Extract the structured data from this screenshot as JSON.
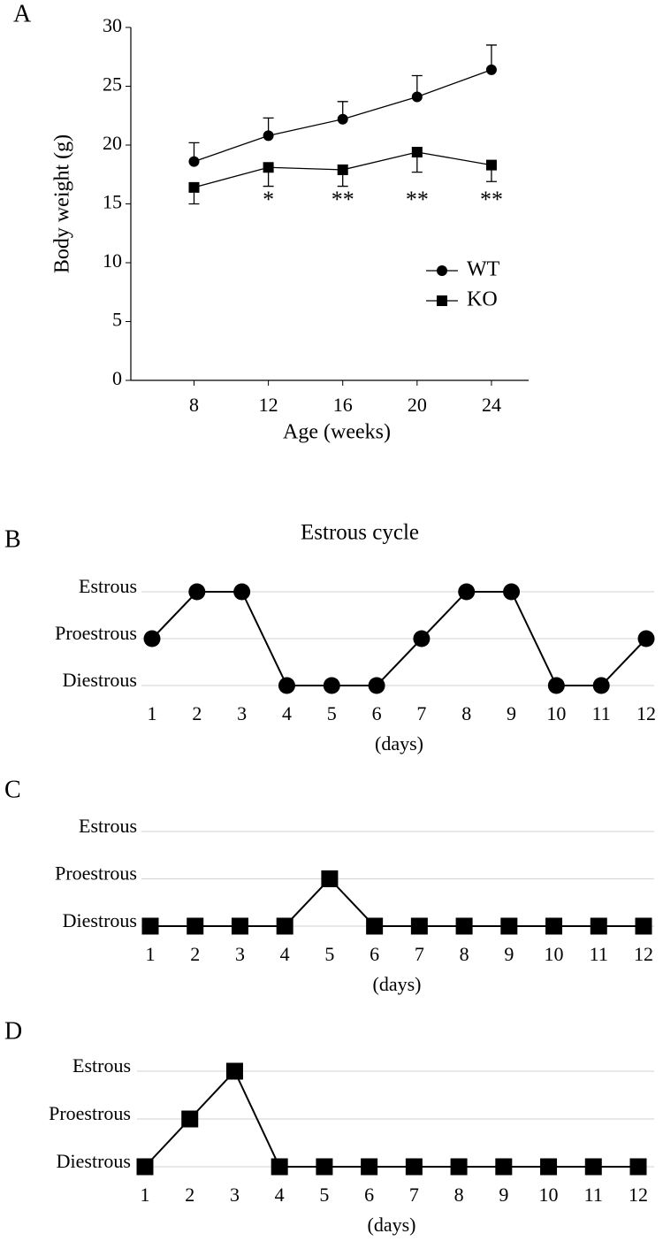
{
  "chart_data": [
    {
      "type": "line",
      "label": "A",
      "xlabel": "Age (weeks)",
      "ylabel": "Body weight (g)",
      "x": [
        8,
        12,
        16,
        20,
        24
      ],
      "xlim": [
        4.6,
        26
      ],
      "xticks": [
        8,
        12,
        16,
        20,
        24
      ],
      "ylim": [
        0,
        30
      ],
      "yticks": [
        0,
        5,
        10,
        15,
        20,
        25,
        30
      ],
      "series": [
        {
          "name": "WT",
          "color": "#000000",
          "marker": "circle",
          "error_direction": "up",
          "values": [
            18.6,
            20.8,
            22.2,
            24.1,
            26.4
          ],
          "errors": [
            1.6,
            1.5,
            1.5,
            1.8,
            2.1
          ]
        },
        {
          "name": "KO",
          "color": "#000000",
          "marker": "square",
          "error_direction": "down",
          "values": [
            16.4,
            18.1,
            17.9,
            19.4,
            18.3
          ],
          "errors": [
            1.4,
            1.6,
            1.4,
            1.7,
            1.4
          ]
        }
      ],
      "annotations": [
        {
          "text": "*",
          "x": 12
        },
        {
          "text": "**",
          "x": 16
        },
        {
          "text": "**",
          "x": 20
        },
        {
          "text": "**",
          "x": 24
        }
      ],
      "legend": "right"
    },
    {
      "type": "line",
      "label": "B",
      "title": "Estrous cycle",
      "xlabel": "(days)",
      "categories": [
        "1",
        "2",
        "3",
        "4",
        "5",
        "6",
        "7",
        "8",
        "9",
        "10",
        "11",
        "12"
      ],
      "ylim": [
        0,
        2
      ],
      "yticks": [
        {
          "value": 0,
          "label": "Diestrous"
        },
        {
          "value": 1,
          "label": "Proestrous"
        },
        {
          "value": 2,
          "label": "Estrous"
        }
      ],
      "grid": true,
      "marker": "circle",
      "color": "#000000",
      "values": [
        1,
        2,
        2,
        0,
        0,
        0,
        1,
        2,
        2,
        0,
        0,
        1
      ]
    },
    {
      "type": "line",
      "label": "C",
      "xlabel": "(days)",
      "categories": [
        "1",
        "2",
        "3",
        "4",
        "5",
        "6",
        "7",
        "8",
        "9",
        "10",
        "11",
        "12"
      ],
      "ylim": [
        0,
        2
      ],
      "yticks": [
        {
          "value": 0,
          "label": "Diestrous"
        },
        {
          "value": 1,
          "label": "Proestrous"
        },
        {
          "value": 2,
          "label": "Estrous"
        }
      ],
      "grid": true,
      "marker": "square",
      "color": "#000000",
      "values": [
        0,
        0,
        0,
        0,
        1,
        0,
        0,
        0,
        0,
        0,
        0,
        0
      ]
    },
    {
      "type": "line",
      "label": "D",
      "xlabel": "(days)",
      "categories": [
        "1",
        "2",
        "3",
        "4",
        "5",
        "6",
        "7",
        "8",
        "9",
        "10",
        "11",
        "12"
      ],
      "ylim": [
        0,
        2
      ],
      "yticks": [
        {
          "value": 0,
          "label": "Diestrous"
        },
        {
          "value": 1,
          "label": "Proestrous"
        },
        {
          "value": 2,
          "label": "Estrous"
        }
      ],
      "grid": true,
      "marker": "square",
      "color": "#000000",
      "values": [
        0,
        1,
        2,
        0,
        0,
        0,
        0,
        0,
        0,
        0,
        0,
        0
      ]
    }
  ]
}
